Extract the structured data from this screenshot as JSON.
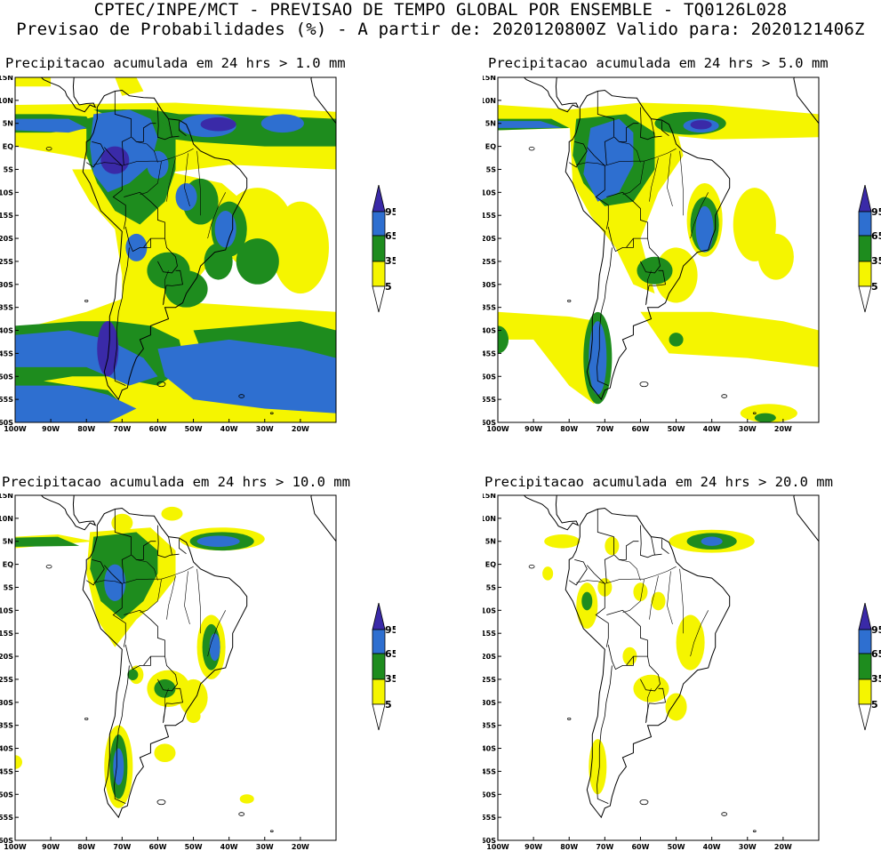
{
  "header": {
    "line1": "CPTEC/INPE/MCT - PREVISAO DE TEMPO GLOBAL POR ENSEMBLE - TQ0126L028",
    "line2": "Previsao de Probabilidades (%) -  A partir de: 2020120800Z  Valido para: 2020121406Z"
  },
  "axes": {
    "lat_labels": [
      "15N",
      "10N",
      "5N",
      "EQ",
      "5S",
      "10S",
      "15S",
      "20S",
      "25S",
      "30S",
      "35S",
      "40S",
      "45S",
      "50S",
      "55S",
      "60S"
    ],
    "lon_labels": [
      "100W",
      "90W",
      "80W",
      "70W",
      "60W",
      "50W",
      "40W",
      "30W",
      "20W"
    ],
    "lat_range": [
      15,
      -60
    ],
    "lon_range": [
      -100,
      -10
    ]
  },
  "colorbar": {
    "levels": [
      "95",
      "65",
      "35",
      "5"
    ],
    "colors": [
      "#3a2aa8",
      "#2e6fd0",
      "#1e8c1e",
      "#f5f500"
    ]
  },
  "panels": [
    {
      "title": "Precipitacao acumulada em 24 hrs > 1.0 mm"
    },
    {
      "title": "Precipitacao acumulada em 24 hrs > 5.0 mm"
    },
    {
      "title": "Precipitacao acumulada em 24 hrs > 10.0 mm"
    },
    {
      "title": "Precipitacao acumulada em 24 hrs > 20.0 mm"
    }
  ]
}
